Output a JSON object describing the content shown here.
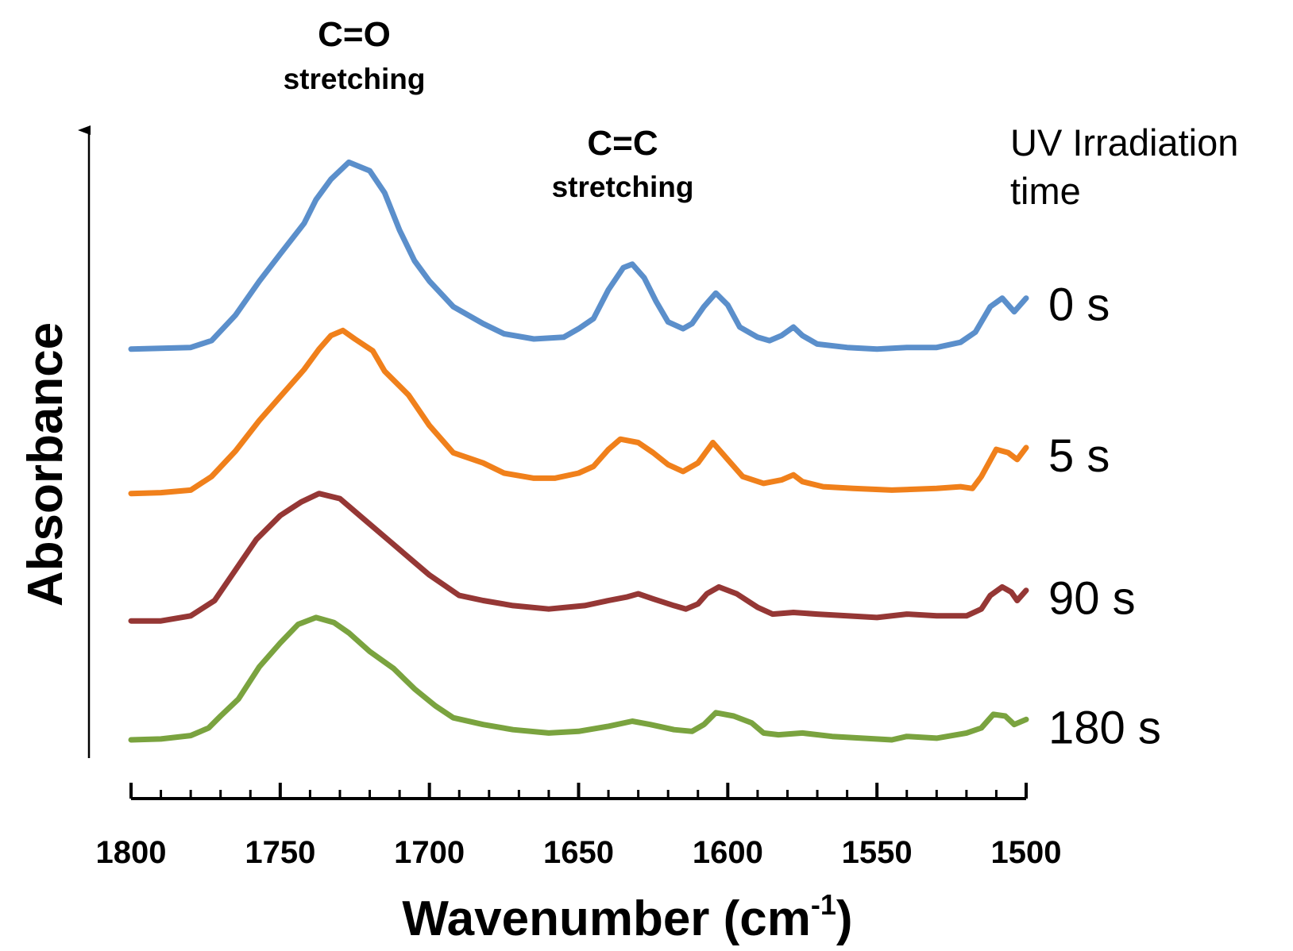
{
  "chart_data": {
    "type": "line",
    "title": "",
    "xlabel": "Wavenumber (cm",
    "xlabel_superscript": "-1",
    "xlabel_close": ")",
    "ylabel": "Absorbance",
    "xlim": [
      1800,
      1500
    ],
    "x_reversed": true,
    "x_ticks": [
      1800,
      1750,
      1700,
      1650,
      1600,
      1550,
      1500
    ],
    "y_ticks_shown": false,
    "grid": false,
    "legend_title_lines": [
      "UV Irradiation",
      "time"
    ],
    "annotations": [
      {
        "main": "C=O",
        "sub": "stretching",
        "x": 1728
      },
      {
        "main": "C=C",
        "sub": "stretching",
        "x": 1638
      }
    ],
    "series": [
      {
        "name": "0 s",
        "color": "#5B8FCB",
        "offset": 2.3,
        "points": [
          [
            1800,
            0.0
          ],
          [
            1790,
            0.005
          ],
          [
            1780,
            0.01
          ],
          [
            1773,
            0.05
          ],
          [
            1765,
            0.2
          ],
          [
            1757,
            0.4
          ],
          [
            1750,
            0.56
          ],
          [
            1742,
            0.74
          ],
          [
            1738,
            0.88
          ],
          [
            1733,
            1.0
          ],
          [
            1727,
            1.1
          ],
          [
            1720,
            1.05
          ],
          [
            1715,
            0.92
          ],
          [
            1710,
            0.7
          ],
          [
            1705,
            0.52
          ],
          [
            1700,
            0.4
          ],
          [
            1692,
            0.25
          ],
          [
            1682,
            0.15
          ],
          [
            1675,
            0.09
          ],
          [
            1665,
            0.06
          ],
          [
            1655,
            0.07
          ],
          [
            1650,
            0.12
          ],
          [
            1645,
            0.18
          ],
          [
            1640,
            0.35
          ],
          [
            1635,
            0.48
          ],
          [
            1632,
            0.5
          ],
          [
            1628,
            0.42
          ],
          [
            1624,
            0.28
          ],
          [
            1620,
            0.16
          ],
          [
            1615,
            0.12
          ],
          [
            1612,
            0.15
          ],
          [
            1608,
            0.25
          ],
          [
            1604,
            0.33
          ],
          [
            1600,
            0.26
          ],
          [
            1596,
            0.13
          ],
          [
            1590,
            0.07
          ],
          [
            1586,
            0.05
          ],
          [
            1582,
            0.08
          ],
          [
            1578,
            0.13
          ],
          [
            1575,
            0.08
          ],
          [
            1570,
            0.03
          ],
          [
            1560,
            0.01
          ],
          [
            1550,
            0.0
          ],
          [
            1540,
            0.01
          ],
          [
            1530,
            0.01
          ],
          [
            1522,
            0.04
          ],
          [
            1517,
            0.1
          ],
          [
            1512,
            0.25
          ],
          [
            1508,
            0.3
          ],
          [
            1504,
            0.22
          ],
          [
            1500,
            0.3
          ]
        ]
      },
      {
        "name": "5 s",
        "color": "#F0801B",
        "offset": 1.45,
        "points": [
          [
            1800,
            0.0
          ],
          [
            1790,
            0.005
          ],
          [
            1780,
            0.02
          ],
          [
            1773,
            0.1
          ],
          [
            1765,
            0.25
          ],
          [
            1757,
            0.43
          ],
          [
            1750,
            0.57
          ],
          [
            1742,
            0.73
          ],
          [
            1737,
            0.85
          ],
          [
            1733,
            0.93
          ],
          [
            1729,
            0.96
          ],
          [
            1725,
            0.91
          ],
          [
            1719,
            0.84
          ],
          [
            1715,
            0.72
          ],
          [
            1707,
            0.58
          ],
          [
            1700,
            0.4
          ],
          [
            1692,
            0.24
          ],
          [
            1682,
            0.18
          ],
          [
            1675,
            0.12
          ],
          [
            1665,
            0.09
          ],
          [
            1658,
            0.09
          ],
          [
            1650,
            0.12
          ],
          [
            1645,
            0.16
          ],
          [
            1640,
            0.26
          ],
          [
            1636,
            0.32
          ],
          [
            1630,
            0.3
          ],
          [
            1625,
            0.24
          ],
          [
            1620,
            0.17
          ],
          [
            1615,
            0.13
          ],
          [
            1610,
            0.18
          ],
          [
            1605,
            0.3
          ],
          [
            1600,
            0.2
          ],
          [
            1595,
            0.1
          ],
          [
            1588,
            0.06
          ],
          [
            1582,
            0.08
          ],
          [
            1578,
            0.11
          ],
          [
            1575,
            0.07
          ],
          [
            1568,
            0.04
          ],
          [
            1558,
            0.03
          ],
          [
            1545,
            0.02
          ],
          [
            1530,
            0.03
          ],
          [
            1522,
            0.04
          ],
          [
            1518,
            0.03
          ],
          [
            1515,
            0.1
          ],
          [
            1510,
            0.26
          ],
          [
            1506,
            0.24
          ],
          [
            1503,
            0.2
          ],
          [
            1500,
            0.27
          ]
        ]
      },
      {
        "name": "90 s",
        "color": "#953735",
        "offset": 0.7,
        "points": [
          [
            1800,
            0.0
          ],
          [
            1790,
            0.0
          ],
          [
            1780,
            0.03
          ],
          [
            1772,
            0.12
          ],
          [
            1765,
            0.3
          ],
          [
            1758,
            0.48
          ],
          [
            1750,
            0.62
          ],
          [
            1743,
            0.7
          ],
          [
            1737,
            0.75
          ],
          [
            1730,
            0.72
          ],
          [
            1722,
            0.6
          ],
          [
            1714,
            0.48
          ],
          [
            1706,
            0.36
          ],
          [
            1700,
            0.27
          ],
          [
            1695,
            0.21
          ],
          [
            1690,
            0.15
          ],
          [
            1682,
            0.12
          ],
          [
            1672,
            0.09
          ],
          [
            1660,
            0.07
          ],
          [
            1648,
            0.09
          ],
          [
            1640,
            0.12
          ],
          [
            1634,
            0.14
          ],
          [
            1630,
            0.16
          ],
          [
            1625,
            0.13
          ],
          [
            1618,
            0.09
          ],
          [
            1614,
            0.07
          ],
          [
            1610,
            0.1
          ],
          [
            1607,
            0.16
          ],
          [
            1603,
            0.2
          ],
          [
            1597,
            0.16
          ],
          [
            1590,
            0.08
          ],
          [
            1585,
            0.04
          ],
          [
            1578,
            0.05
          ],
          [
            1570,
            0.04
          ],
          [
            1560,
            0.03
          ],
          [
            1550,
            0.02
          ],
          [
            1540,
            0.04
          ],
          [
            1530,
            0.03
          ],
          [
            1520,
            0.03
          ],
          [
            1515,
            0.07
          ],
          [
            1512,
            0.15
          ],
          [
            1508,
            0.2
          ],
          [
            1505,
            0.17
          ],
          [
            1503,
            0.12
          ],
          [
            1500,
            0.18
          ]
        ]
      },
      {
        "name": "180 s",
        "color": "#7AA33F",
        "offset": 0.0,
        "points": [
          [
            1800,
            0.0
          ],
          [
            1790,
            0.005
          ],
          [
            1780,
            0.025
          ],
          [
            1774,
            0.07
          ],
          [
            1770,
            0.14
          ],
          [
            1764,
            0.24
          ],
          [
            1757,
            0.43
          ],
          [
            1750,
            0.57
          ],
          [
            1744,
            0.68
          ],
          [
            1738,
            0.72
          ],
          [
            1732,
            0.69
          ],
          [
            1727,
            0.63
          ],
          [
            1720,
            0.52
          ],
          [
            1712,
            0.42
          ],
          [
            1705,
            0.3
          ],
          [
            1698,
            0.2
          ],
          [
            1692,
            0.13
          ],
          [
            1682,
            0.09
          ],
          [
            1672,
            0.06
          ],
          [
            1660,
            0.04
          ],
          [
            1650,
            0.05
          ],
          [
            1640,
            0.08
          ],
          [
            1632,
            0.11
          ],
          [
            1626,
            0.09
          ],
          [
            1618,
            0.06
          ],
          [
            1612,
            0.05
          ],
          [
            1608,
            0.09
          ],
          [
            1604,
            0.16
          ],
          [
            1598,
            0.14
          ],
          [
            1592,
            0.1
          ],
          [
            1588,
            0.04
          ],
          [
            1583,
            0.03
          ],
          [
            1575,
            0.04
          ],
          [
            1565,
            0.02
          ],
          [
            1555,
            0.01
          ],
          [
            1545,
            0.0
          ],
          [
            1540,
            0.02
          ],
          [
            1530,
            0.01
          ],
          [
            1520,
            0.04
          ],
          [
            1515,
            0.07
          ],
          [
            1511,
            0.15
          ],
          [
            1507,
            0.14
          ],
          [
            1504,
            0.09
          ],
          [
            1500,
            0.12
          ]
        ]
      }
    ]
  }
}
